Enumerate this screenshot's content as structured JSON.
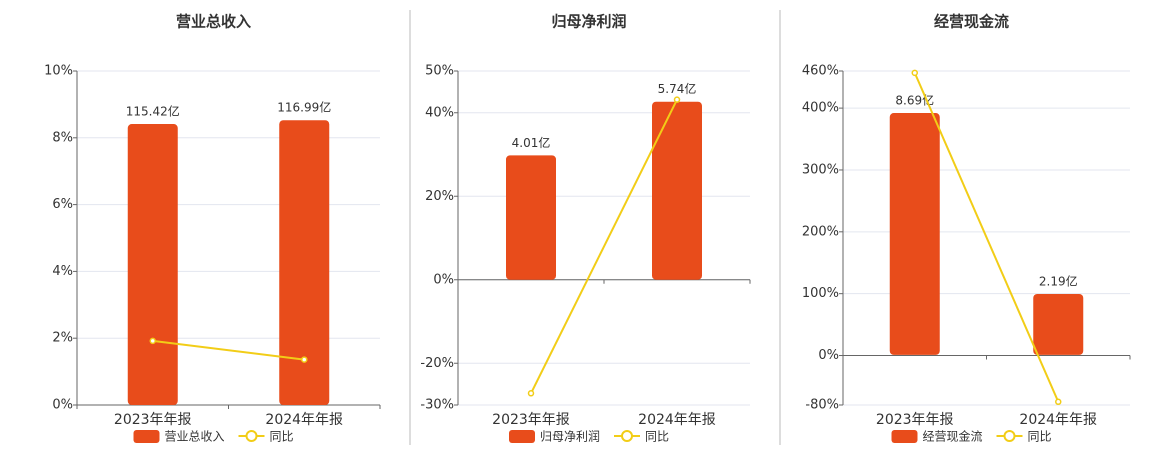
{
  "chart_data": [
    {
      "type": "bar",
      "title": "营业总收入",
      "categories": [
        "2023年年报",
        "2024年年报"
      ],
      "series": [
        {
          "name": "营业总收入",
          "color": "#e84c1b",
          "axis": "y2",
          "values": [
            115.42,
            116.99
          ],
          "value_labels": [
            "115.42亿",
            "116.99亿"
          ]
        },
        {
          "name": "同比",
          "type": "line",
          "color": "#f2cd17",
          "values": [
            1.92,
            1.36
          ]
        }
      ],
      "ylim": [
        0,
        10
      ],
      "yticks": [
        {
          "value": 0,
          "label": "0%"
        },
        {
          "value": 2,
          "label": "2%"
        },
        {
          "value": 4,
          "label": "4%"
        },
        {
          "value": 6,
          "label": "6%"
        },
        {
          "value": 8,
          "label": "8%"
        },
        {
          "value": 10,
          "label": "10%"
        }
      ],
      "y2lim": [
        0,
        137.2
      ],
      "grid": true
    },
    {
      "type": "bar",
      "title": "归母净利润",
      "categories": [
        "2023年年报",
        "2024年年报"
      ],
      "series": [
        {
          "name": "归母净利润",
          "color": "#e84c1b",
          "axis": "y2",
          "values": [
            4.01,
            5.74
          ],
          "value_labels": [
            "4.01亿",
            "5.74亿"
          ]
        },
        {
          "name": "同比",
          "type": "line",
          "color": "#f2cd17",
          "values": [
            -27.2,
            43.14
          ]
        }
      ],
      "ylim": [
        -30,
        50
      ],
      "yticks": [
        {
          "value": -30,
          "label": "-30%"
        },
        {
          "value": -20,
          "label": "-20%"
        },
        {
          "value": 0,
          "label": "0%"
        },
        {
          "value": 20,
          "label": "20%"
        },
        {
          "value": 40,
          "label": "40%"
        },
        {
          "value": 50,
          "label": "50%"
        }
      ],
      "y2lim": [
        -4.04,
        6.73
      ],
      "grid": true
    },
    {
      "type": "bar",
      "title": "经营现金流",
      "categories": [
        "2023年年报",
        "2024年年报"
      ],
      "series": [
        {
          "name": "经营现金流",
          "color": "#e84c1b",
          "axis": "y2",
          "values": [
            8.69,
            2.19
          ],
          "value_labels": [
            "8.69亿",
            "2.19亿"
          ]
        },
        {
          "name": "同比",
          "type": "line",
          "color": "#f2cd17",
          "values": [
            457,
            -74.8
          ]
        }
      ],
      "ylim": [
        -80,
        460
      ],
      "yticks": [
        {
          "value": -80,
          "label": "-80%"
        },
        {
          "value": 0,
          "label": "0%"
        },
        {
          "value": 100,
          "label": "100%"
        },
        {
          "value": 200,
          "label": "200%"
        },
        {
          "value": 300,
          "label": "300%"
        },
        {
          "value": 400,
          "label": "400%"
        },
        {
          "value": 460,
          "label": "460%"
        }
      ],
      "y2lim": [
        -1.8,
        10.2
      ],
      "grid": true
    }
  ]
}
